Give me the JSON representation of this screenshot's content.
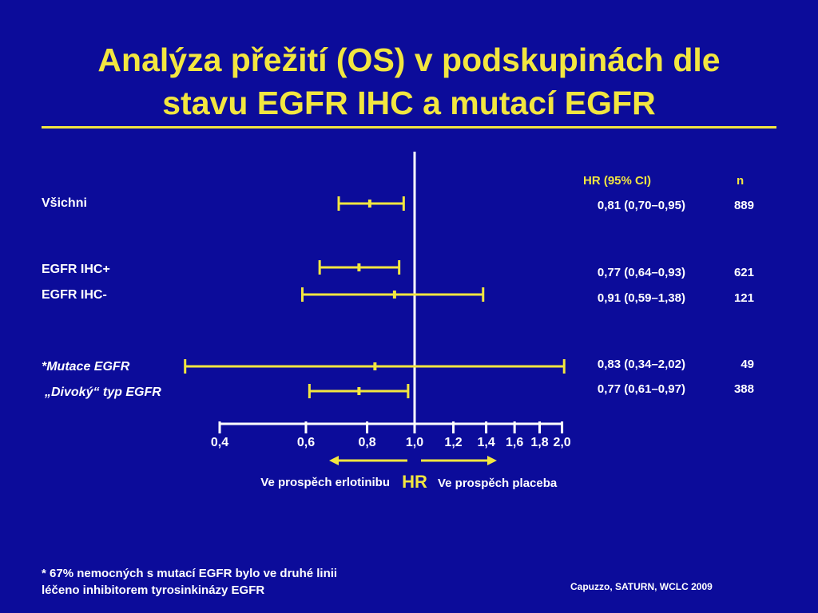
{
  "title_line1": "Analýza přežití (OS) v podskupinách dle",
  "title_line2": "stavu EGFR IHC a mutací EGFR",
  "headers": {
    "hr": "HR (95% CI)",
    "n": "n"
  },
  "colors": {
    "background": "#0c0c9a",
    "accent": "#f2e640",
    "text": "#ffffff"
  },
  "chart_data": {
    "type": "forest",
    "xlabel": "HR",
    "x_scale": "log",
    "xlim": [
      0.4,
      2.0
    ],
    "reference_line": 1.0,
    "ticks": [
      0.4,
      0.6,
      0.8,
      1.0,
      1.2,
      1.4,
      1.6,
      1.8,
      2.0
    ],
    "tick_labels": [
      "0,4",
      "0,6",
      "0,8",
      "1,0",
      "1,2",
      "1,4",
      "1,6",
      "1,8",
      "2,0"
    ],
    "left_arrow_label": "Ve prospěch erlotinibu",
    "right_arrow_label": "Ve prospěch placeba",
    "rows": [
      {
        "label": "Všichni",
        "hr": 0.81,
        "lo": 0.7,
        "hi": 0.95,
        "hr_text": "0,81 (0,70–0,95)",
        "n": "889",
        "italic": false
      },
      {
        "label": "EGFR IHC+",
        "hr": 0.77,
        "lo": 0.64,
        "hi": 0.93,
        "hr_text": "0,77 (0,64–0,93)",
        "n": "621",
        "italic": false
      },
      {
        "label": "EGFR IHC-",
        "hr": 0.91,
        "lo": 0.59,
        "hi": 1.38,
        "hr_text": "0,91 (0,59–1,38)",
        "n": "121",
        "italic": false
      },
      {
        "label": "*Mutace EGFR",
        "hr": 0.83,
        "lo": 0.34,
        "hi": 2.02,
        "hr_text": "0,83 (0,34–2,02)",
        "n": "49",
        "italic": true
      },
      {
        "label": "„Divoký“ typ EGFR",
        "hr": 0.77,
        "lo": 0.61,
        "hi": 0.97,
        "hr_text": "0,77 (0,61–0,97)",
        "n": "388",
        "italic": true
      }
    ]
  },
  "footnote_line1": "* 67% nemocných s mutací EGFR bylo ve druhé linii",
  "footnote_line2": "léčeno inhibitorem tyrosinkinázy EGFR",
  "source": "Capuzzo, SATURN, WCLC 2009"
}
